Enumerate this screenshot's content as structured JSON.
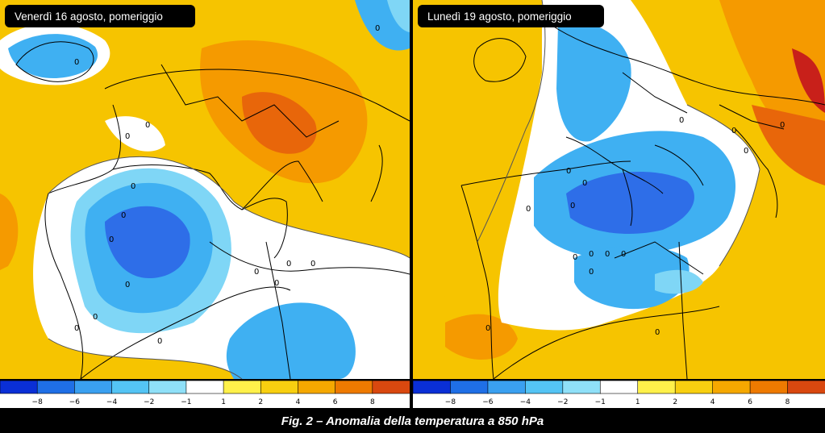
{
  "panels": [
    {
      "title": "Venerdì 16 agosto, pomeriggio",
      "contour_labels": [
        "0",
        "0",
        "0",
        "0",
        "0",
        "0",
        "0",
        "0",
        "0",
        "0",
        "0",
        "0",
        "0",
        "0",
        "0"
      ]
    },
    {
      "title": "Lunedì 19 agosto, pomeriggio",
      "contour_labels": [
        "0",
        "0",
        "0",
        "0",
        "0",
        "0",
        "0",
        "0",
        "0",
        "0",
        "0",
        "0",
        "0",
        "0",
        "0"
      ]
    }
  ],
  "colorbar": {
    "tick_labels": [
      "−8",
      "−6",
      "−4",
      "−2",
      "−1",
      "1",
      "2",
      "4",
      "6",
      "8"
    ],
    "colors": [
      "#0a2fd6",
      "#1f6fe6",
      "#3aa0f0",
      "#54c4f4",
      "#8fe0f8",
      "#ffffff",
      "#fff14a",
      "#f8cf10",
      "#f5a800",
      "#ee7a00",
      "#d9480f"
    ]
  },
  "field_colors": {
    "very_cold": "#2e6ee8",
    "cold": "#3fb0f2",
    "cool": "#7fd6f6",
    "neutral": "#ffffff",
    "warm": "#f6c400",
    "hot": "#f59a00",
    "very_hot": "#e8660a",
    "extreme": "#c8201a"
  },
  "caption": "Fig. 2 – Anomalia della temperatura a 850 hPa"
}
